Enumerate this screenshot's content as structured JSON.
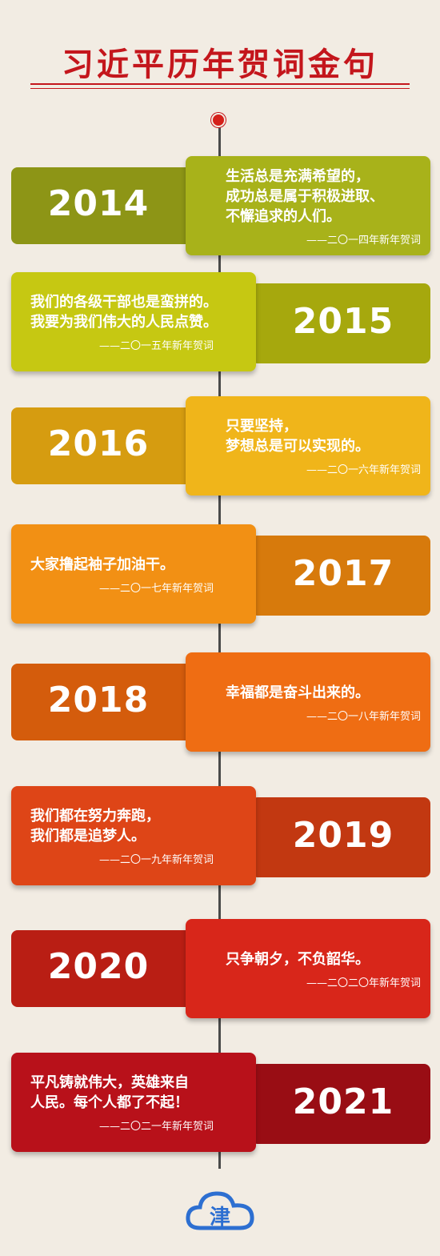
{
  "title": "习近平历年贺词金句",
  "colors": {
    "title": "#c4161c",
    "background": "#f2ece3",
    "logo": "#2d6fd1"
  },
  "entries": [
    {
      "year": "2014",
      "quote": "生活总是充满希望的，\n成功总是属于积极进取、\n不懈追求的人们。",
      "source": "——二〇一四年新年贺词",
      "layout": "year-left",
      "color": "#a8b21a",
      "dark": "#8d9516"
    },
    {
      "year": "2015",
      "quote": "我们的各级干部也是蛮拼的。\n我要为我们伟大的人民点赞。",
      "source": "——二〇一五年新年贺词",
      "layout": "year-right",
      "color": "#c6c812",
      "dark": "#a6a80d"
    },
    {
      "year": "2016",
      "quote": "只要坚持，\n梦想总是可以实现的。",
      "source": "——二〇一六年新年贺词",
      "layout": "year-left",
      "color": "#f0b51a",
      "dark": "#d69c10"
    },
    {
      "year": "2017",
      "quote": "大家撸起袖子加油干。",
      "source": "——二〇一七年新年贺词",
      "layout": "year-right",
      "color": "#f29014",
      "dark": "#d77a0c"
    },
    {
      "year": "2018",
      "quote": "幸福都是奋斗出来的。",
      "source": "——二〇一八年新年贺词",
      "layout": "year-left",
      "color": "#ef6d13",
      "dark": "#d45c0c"
    },
    {
      "year": "2019",
      "quote": "我们都在努力奔跑，\n我们都是追梦人。",
      "source": "——二〇一九年新年贺词",
      "layout": "year-right",
      "color": "#de4517",
      "dark": "#c23811"
    },
    {
      "year": "2020",
      "quote": "只争朝夕，不负韶华。",
      "source": "——二〇二〇年新年贺词",
      "layout": "year-left",
      "color": "#d8261a",
      "dark": "#b91e14"
    },
    {
      "year": "2021",
      "quote": "平凡铸就伟大，英雄来自\n人民。每个人都了不起！",
      "source": "——二〇二一年新年贺词",
      "layout": "year-right",
      "color": "#b8111a",
      "dark": "#990d14"
    }
  ],
  "logo": {
    "glyph": "津"
  }
}
